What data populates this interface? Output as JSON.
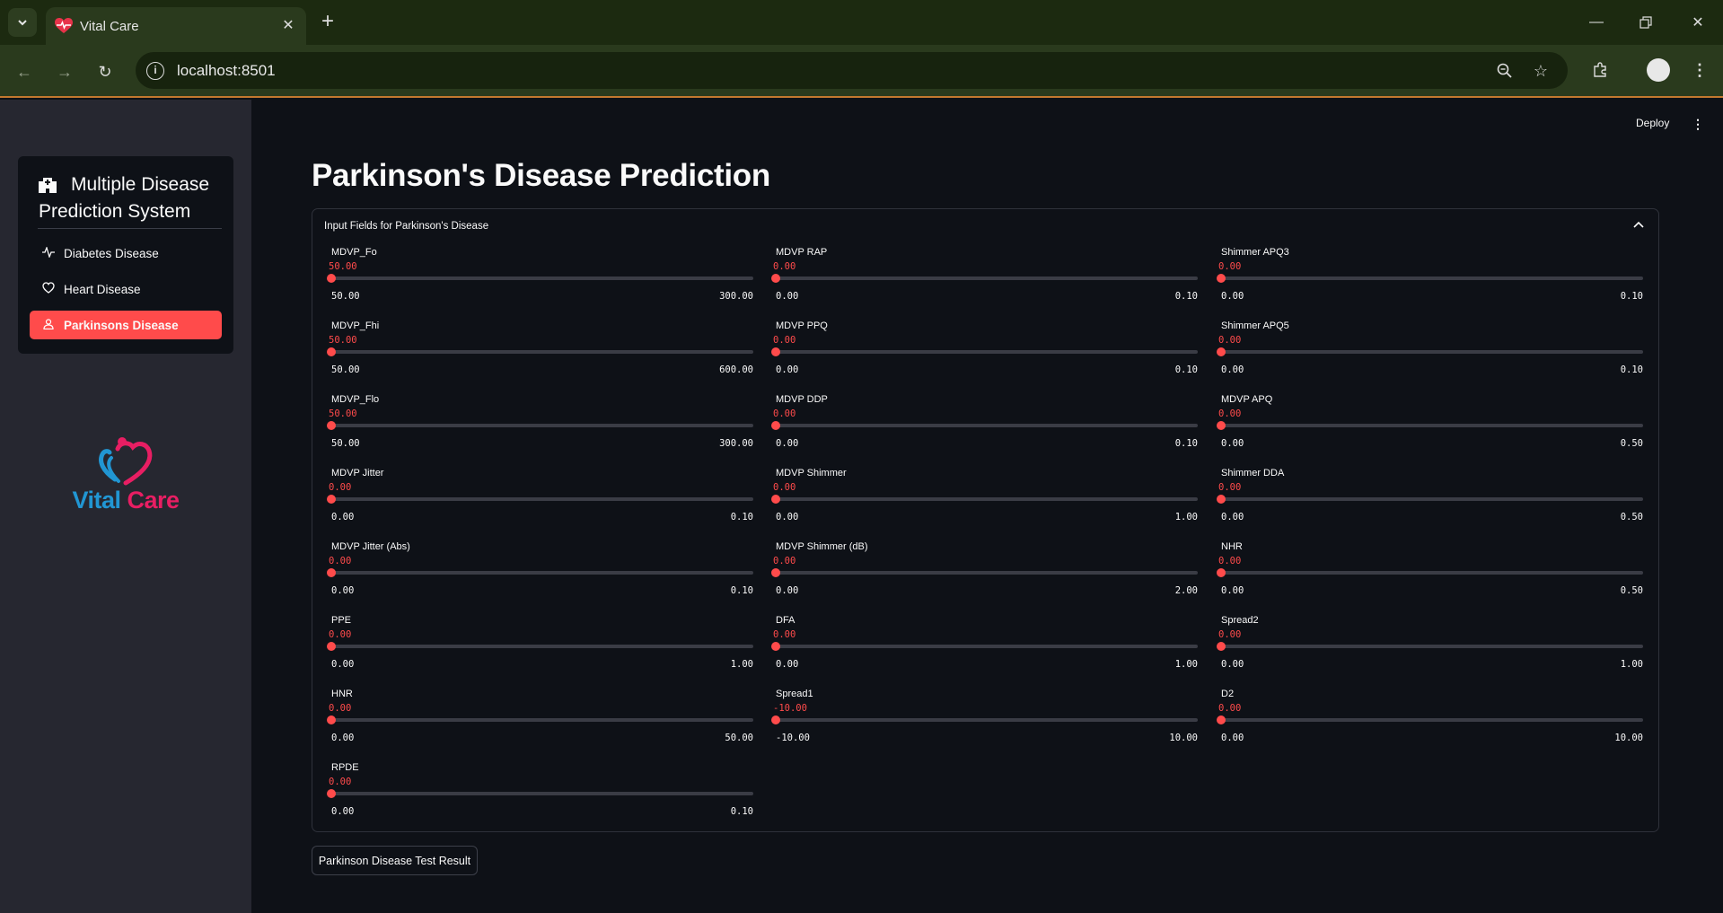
{
  "browser": {
    "tab_title": "Vital Care",
    "url": "localhost:8501"
  },
  "app": {
    "deploy_label": "Deploy"
  },
  "sidebar": {
    "menu_title": "Multiple Disease Prediction System",
    "items": [
      {
        "label": "Diabetes Disease",
        "icon": "activity-icon",
        "active": false
      },
      {
        "label": "Heart Disease",
        "icon": "heart-icon",
        "active": false
      },
      {
        "label": "Parkinsons Disease",
        "icon": "person-icon",
        "active": true
      }
    ],
    "logo": {
      "word1": "Vital",
      "word2": "Care"
    }
  },
  "colors": {
    "accent": "#ff4b4b",
    "background": "#0e1117",
    "sidebar_bg": "#262730",
    "logo_blue": "#2196d3",
    "logo_pink": "#e81e63"
  },
  "main": {
    "title": "Parkinson's Disease Prediction",
    "expander_label": "Input Fields for Parkinson's Disease",
    "columns": [
      [
        {
          "label": "MDVP_Fo",
          "value": "50.00",
          "min": "50.00",
          "max": "300.00"
        },
        {
          "label": "MDVP_Fhi",
          "value": "50.00",
          "min": "50.00",
          "max": "600.00"
        },
        {
          "label": "MDVP_Flo",
          "value": "50.00",
          "min": "50.00",
          "max": "300.00"
        },
        {
          "label": "MDVP Jitter",
          "value": "0.00",
          "min": "0.00",
          "max": "0.10"
        },
        {
          "label": "MDVP Jitter (Abs)",
          "value": "0.00",
          "min": "0.00",
          "max": "0.10"
        },
        {
          "label": "PPE",
          "value": "0.00",
          "min": "0.00",
          "max": "1.00"
        },
        {
          "label": "HNR",
          "value": "0.00",
          "min": "0.00",
          "max": "50.00"
        },
        {
          "label": "RPDE",
          "value": "0.00",
          "min": "0.00",
          "max": "0.10"
        }
      ],
      [
        {
          "label": "MDVP RAP",
          "value": "0.00",
          "min": "0.00",
          "max": "0.10"
        },
        {
          "label": "MDVP PPQ",
          "value": "0.00",
          "min": "0.00",
          "max": "0.10"
        },
        {
          "label": "MDVP DDP",
          "value": "0.00",
          "min": "0.00",
          "max": "0.10"
        },
        {
          "label": "MDVP Shimmer",
          "value": "0.00",
          "min": "0.00",
          "max": "1.00"
        },
        {
          "label": "MDVP Shimmer (dB)",
          "value": "0.00",
          "min": "0.00",
          "max": "2.00"
        },
        {
          "label": "DFA",
          "value": "0.00",
          "min": "0.00",
          "max": "1.00"
        },
        {
          "label": "Spread1",
          "value": "-10.00",
          "min": "-10.00",
          "max": "10.00"
        }
      ],
      [
        {
          "label": "Shimmer APQ3",
          "value": "0.00",
          "min": "0.00",
          "max": "0.10"
        },
        {
          "label": "Shimmer APQ5",
          "value": "0.00",
          "min": "0.00",
          "max": "0.10"
        },
        {
          "label": "MDVP APQ",
          "value": "0.00",
          "min": "0.00",
          "max": "0.50"
        },
        {
          "label": "Shimmer DDA",
          "value": "0.00",
          "min": "0.00",
          "max": "0.50"
        },
        {
          "label": "NHR",
          "value": "0.00",
          "min": "0.00",
          "max": "0.50"
        },
        {
          "label": "Spread2",
          "value": "0.00",
          "min": "0.00",
          "max": "1.00"
        },
        {
          "label": "D2",
          "value": "0.00",
          "min": "0.00",
          "max": "10.00"
        }
      ]
    ],
    "result_button": "Parkinson Disease Test Result"
  }
}
